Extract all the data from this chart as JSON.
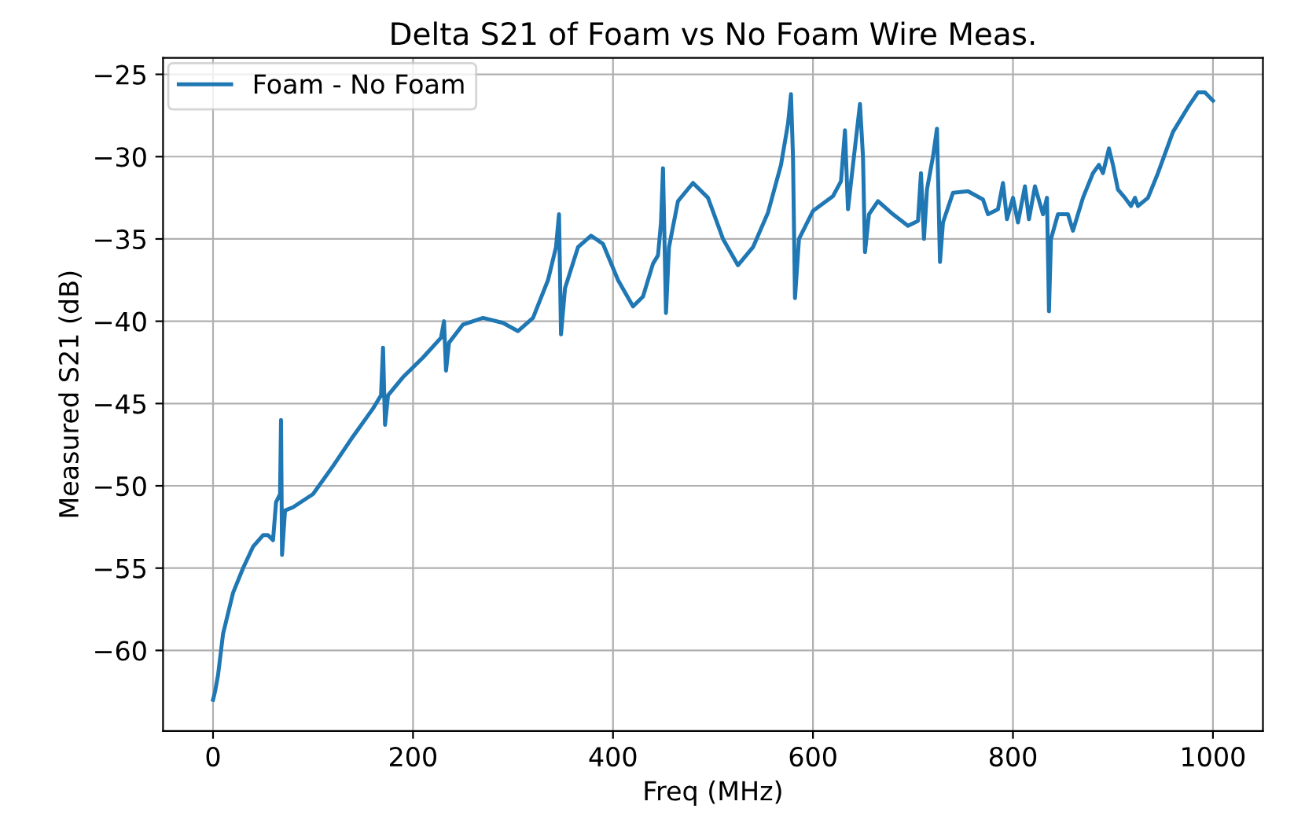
{
  "chart_data": {
    "type": "line",
    "title": "Delta S21 of Foam vs No Foam Wire Meas.",
    "xlabel": "Freq (MHz)",
    "ylabel": "Measured S21 (dB)",
    "xlim": [
      -50,
      1050
    ],
    "ylim": [
      -64.9,
      -24.0
    ],
    "xticks": [
      0,
      200,
      400,
      600,
      800,
      1000
    ],
    "yticks": [
      -60,
      -55,
      -50,
      -45,
      -40,
      -35,
      -30,
      -25
    ],
    "grid": true,
    "legend": "top left",
    "line_style": "solid",
    "marker": "none",
    "series": [
      {
        "name": "Foam - No Foam",
        "color": "#1f77b4",
        "x": [
          0,
          2,
          5,
          10,
          20,
          30,
          40,
          50,
          55,
          60,
          63,
          67,
          68,
          69,
          72,
          80,
          100,
          120,
          140,
          160,
          168,
          170,
          172,
          175,
          190,
          210,
          228,
          231,
          233,
          236,
          250,
          270,
          290,
          305,
          320,
          335,
          343,
          346,
          348,
          352,
          365,
          378,
          390,
          405,
          420,
          430,
          440,
          445,
          448,
          450,
          453,
          456,
          465,
          480,
          495,
          510,
          525,
          540,
          555,
          568,
          575,
          578,
          580,
          582,
          586,
          600,
          620,
          628,
          632,
          635,
          640,
          647,
          650,
          652,
          656,
          665,
          680,
          695,
          705,
          708,
          711,
          714,
          720,
          724,
          727,
          730,
          740,
          755,
          770,
          775,
          785,
          790,
          794,
          800,
          805,
          812,
          816,
          822,
          830,
          834,
          836,
          838,
          845,
          855,
          860,
          870,
          880,
          886,
          890,
          896,
          900,
          905,
          912,
          918,
          922,
          925,
          935,
          945,
          960,
          975,
          985,
          992,
          1000
        ],
        "values": [
          -63,
          -62.5,
          -61.5,
          -59,
          -56.5,
          -55,
          -53.7,
          -53,
          -53,
          -53.3,
          -51,
          -50.5,
          -46,
          -54.2,
          -51.5,
          -51.3,
          -50.5,
          -48.8,
          -47,
          -45.3,
          -44.5,
          -41.6,
          -46.3,
          -44.5,
          -43.4,
          -42.2,
          -41,
          -40,
          -43,
          -41.3,
          -40.2,
          -39.8,
          -40.1,
          -40.6,
          -39.8,
          -37.5,
          -35.5,
          -33.5,
          -40.8,
          -38,
          -35.5,
          -34.8,
          -35.3,
          -37.5,
          -39.1,
          -38.5,
          -36.5,
          -36,
          -34,
          -30.7,
          -39.5,
          -35.5,
          -32.7,
          -31.6,
          -32.5,
          -35,
          -36.6,
          -35.5,
          -33.4,
          -30.5,
          -28,
          -26.2,
          -30,
          -38.6,
          -35,
          -33.3,
          -32.4,
          -31.5,
          -28.4,
          -33.2,
          -30.5,
          -26.8,
          -30,
          -35.8,
          -33.5,
          -32.7,
          -33.5,
          -34.2,
          -33.9,
          -31,
          -35,
          -32,
          -30,
          -28.3,
          -36.4,
          -34,
          -32.2,
          -32.1,
          -32.6,
          -33.5,
          -33.2,
          -31.6,
          -33.8,
          -32.5,
          -34,
          -31.8,
          -33.8,
          -31.8,
          -33.5,
          -32.5,
          -39.4,
          -35,
          -33.5,
          -33.5,
          -34.5,
          -32.5,
          -31,
          -30.5,
          -31,
          -29.5,
          -30.5,
          -32,
          -32.5,
          -33,
          -32.5,
          -33,
          -32.5,
          -31,
          -28.5,
          -27,
          -26.1,
          -26.1,
          -26.6
        ]
      }
    ]
  }
}
